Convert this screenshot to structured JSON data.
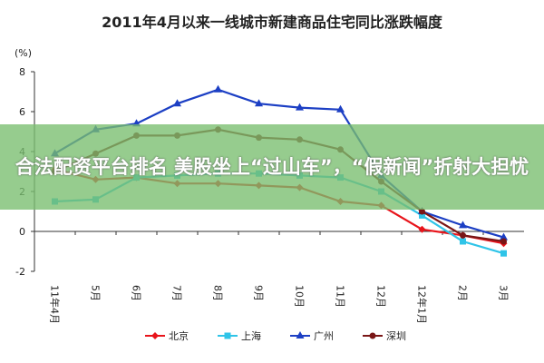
{
  "chart_data": {
    "type": "line",
    "title": "2011年4月以来一线城市新建商品住宅同比涨跌幅度",
    "y_label": "(%)",
    "banner": "合法配资平台排名 美股坐上“过山车”，“假新闻”折射大担忧",
    "categories": [
      "11年4月",
      "5月",
      "6月",
      "7月",
      "8月",
      "9月",
      "10月",
      "11月",
      "12月",
      "12年1月",
      "2月",
      "3月"
    ],
    "series": [
      {
        "name": "北京",
        "color": "#e8141b",
        "marker": "diamond",
        "values": [
          3.1,
          2.6,
          2.7,
          2.4,
          2.4,
          2.3,
          2.2,
          1.5,
          1.3,
          0.1,
          -0.2,
          -0.6
        ]
      },
      {
        "name": "上海",
        "color": "#2fc4e8",
        "marker": "square",
        "values": [
          1.5,
          1.6,
          2.7,
          2.8,
          2.9,
          2.9,
          2.8,
          2.7,
          2.0,
          0.8,
          -0.5,
          -1.1
        ]
      },
      {
        "name": "广州",
        "color": "#1c3fc4",
        "marker": "triangle",
        "values": [
          3.9,
          5.1,
          5.4,
          6.4,
          7.1,
          6.4,
          6.2,
          6.1,
          2.8,
          1.0,
          0.3,
          -0.3
        ]
      },
      {
        "name": "深圳",
        "color": "#7a1616",
        "marker": "circle",
        "values": [
          3.0,
          3.9,
          4.8,
          4.8,
          5.1,
          4.7,
          4.6,
          4.1,
          2.5,
          1.0,
          -0.2,
          -0.5
        ]
      }
    ],
    "ylim": [
      -2,
      8
    ],
    "yticks": [
      -2,
      0,
      2,
      4,
      6,
      8
    ]
  }
}
